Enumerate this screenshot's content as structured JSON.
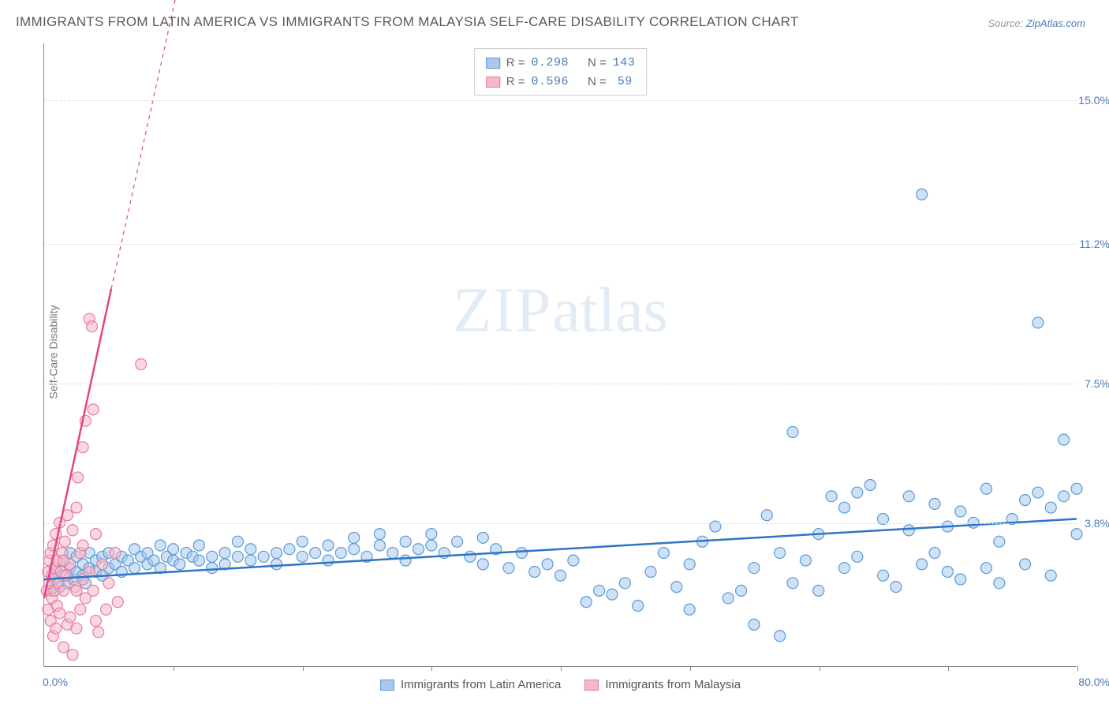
{
  "title": "IMMIGRANTS FROM LATIN AMERICA VS IMMIGRANTS FROM MALAYSIA SELF-CARE DISABILITY CORRELATION CHART",
  "source_prefix": "Source: ",
  "source_link": "ZipAtlas.com",
  "ylabel": "Self-Care Disability",
  "watermark_a": "ZIP",
  "watermark_b": "atlas",
  "chart": {
    "type": "scatter",
    "xlim": [
      0,
      80
    ],
    "ylim": [
      0,
      16.5
    ],
    "x_origin_label": "0.0%",
    "x_max_label": "80.0%",
    "x_ticks": [
      10,
      20,
      30,
      40,
      50,
      60,
      70,
      80
    ],
    "y_gridlines": [
      {
        "y": 3.8,
        "label": "3.8%"
      },
      {
        "y": 7.5,
        "label": "7.5%"
      },
      {
        "y": 11.2,
        "label": "11.2%"
      },
      {
        "y": 15.0,
        "label": "15.0%"
      }
    ],
    "background_color": "#ffffff",
    "grid_color": "#dddddd",
    "axis_color": "#888888",
    "marker_radius": 7,
    "marker_stroke_width": 1.2,
    "series": [
      {
        "name": "Immigrants from Latin America",
        "fill": "#a8c8ec",
        "stroke": "#5b9bd5",
        "line_color": "#2e75c6",
        "line_width": 2.5,
        "r_label": "R = ",
        "r_value": "0.298",
        "n_label": "N = ",
        "n_value": "143",
        "trend": {
          "x1": 0,
          "y1": 2.3,
          "x2": 80,
          "y2": 3.9,
          "dash_after": 80
        },
        "points": [
          [
            0.5,
            2.0
          ],
          [
            0.8,
            2.3
          ],
          [
            1,
            2.5
          ],
          [
            1.2,
            2.1
          ],
          [
            1.5,
            2.4
          ],
          [
            1.5,
            2.8
          ],
          [
            1.8,
            2.2
          ],
          [
            2,
            2.6
          ],
          [
            2,
            3.0
          ],
          [
            2.3,
            2.3
          ],
          [
            2.5,
            2.5
          ],
          [
            2.5,
            2.9
          ],
          [
            3,
            2.4
          ],
          [
            3,
            2.7
          ],
          [
            3.2,
            2.2
          ],
          [
            3.5,
            2.6
          ],
          [
            3.5,
            3.0
          ],
          [
            4,
            2.5
          ],
          [
            4,
            2.8
          ],
          [
            4.5,
            2.4
          ],
          [
            4.5,
            2.9
          ],
          [
            5,
            2.6
          ],
          [
            5,
            3.0
          ],
          [
            5.5,
            2.7
          ],
          [
            6,
            2.5
          ],
          [
            6,
            2.9
          ],
          [
            6.5,
            2.8
          ],
          [
            7,
            2.6
          ],
          [
            7,
            3.1
          ],
          [
            7.5,
            2.9
          ],
          [
            8,
            2.7
          ],
          [
            8,
            3.0
          ],
          [
            8.5,
            2.8
          ],
          [
            9,
            2.6
          ],
          [
            9,
            3.2
          ],
          [
            9.5,
            2.9
          ],
          [
            10,
            2.8
          ],
          [
            10,
            3.1
          ],
          [
            10.5,
            2.7
          ],
          [
            11,
            3.0
          ],
          [
            11.5,
            2.9
          ],
          [
            12,
            2.8
          ],
          [
            12,
            3.2
          ],
          [
            13,
            2.9
          ],
          [
            13,
            2.6
          ],
          [
            14,
            3.0
          ],
          [
            14,
            2.7
          ],
          [
            15,
            2.9
          ],
          [
            15,
            3.3
          ],
          [
            16,
            2.8
          ],
          [
            16,
            3.1
          ],
          [
            17,
            2.9
          ],
          [
            18,
            3.0
          ],
          [
            18,
            2.7
          ],
          [
            19,
            3.1
          ],
          [
            20,
            2.9
          ],
          [
            20,
            3.3
          ],
          [
            21,
            3.0
          ],
          [
            22,
            2.8
          ],
          [
            22,
            3.2
          ],
          [
            23,
            3.0
          ],
          [
            24,
            3.1
          ],
          [
            24,
            3.4
          ],
          [
            25,
            2.9
          ],
          [
            26,
            3.2
          ],
          [
            26,
            3.5
          ],
          [
            27,
            3.0
          ],
          [
            28,
            3.3
          ],
          [
            28,
            2.8
          ],
          [
            29,
            3.1
          ],
          [
            30,
            3.2
          ],
          [
            30,
            3.5
          ],
          [
            31,
            3.0
          ],
          [
            32,
            3.3
          ],
          [
            33,
            2.9
          ],
          [
            34,
            3.4
          ],
          [
            34,
            2.7
          ],
          [
            35,
            3.1
          ],
          [
            36,
            2.6
          ],
          [
            37,
            3.0
          ],
          [
            38,
            2.5
          ],
          [
            39,
            2.7
          ],
          [
            40,
            2.4
          ],
          [
            41,
            2.8
          ],
          [
            42,
            1.7
          ],
          [
            43,
            2.0
          ],
          [
            44,
            1.9
          ],
          [
            45,
            2.2
          ],
          [
            46,
            1.6
          ],
          [
            47,
            2.5
          ],
          [
            48,
            3.0
          ],
          [
            49,
            2.1
          ],
          [
            50,
            1.5
          ],
          [
            50,
            2.7
          ],
          [
            51,
            3.3
          ],
          [
            52,
            3.7
          ],
          [
            53,
            1.8
          ],
          [
            54,
            2.0
          ],
          [
            55,
            1.1
          ],
          [
            55,
            2.6
          ],
          [
            56,
            4.0
          ],
          [
            57,
            3.0
          ],
          [
            57,
            0.8
          ],
          [
            58,
            2.2
          ],
          [
            58,
            6.2
          ],
          [
            59,
            2.8
          ],
          [
            60,
            3.5
          ],
          [
            60,
            2.0
          ],
          [
            61,
            4.5
          ],
          [
            62,
            2.6
          ],
          [
            62,
            4.2
          ],
          [
            63,
            2.9
          ],
          [
            63,
            4.6
          ],
          [
            64,
            4.8
          ],
          [
            65,
            2.4
          ],
          [
            65,
            3.9
          ],
          [
            66,
            2.1
          ],
          [
            67,
            3.6
          ],
          [
            67,
            4.5
          ],
          [
            68,
            2.7
          ],
          [
            68,
            12.5
          ],
          [
            69,
            3.0
          ],
          [
            69,
            4.3
          ],
          [
            70,
            2.5
          ],
          [
            70,
            3.7
          ],
          [
            71,
            4.1
          ],
          [
            71,
            2.3
          ],
          [
            72,
            3.8
          ],
          [
            73,
            4.7
          ],
          [
            73,
            2.6
          ],
          [
            74,
            3.3
          ],
          [
            74,
            2.2
          ],
          [
            75,
            3.9
          ],
          [
            76,
            4.4
          ],
          [
            76,
            2.7
          ],
          [
            77,
            4.6
          ],
          [
            77,
            9.1
          ],
          [
            78,
            4.2
          ],
          [
            78,
            2.4
          ],
          [
            79,
            6.0
          ],
          [
            79,
            4.5
          ],
          [
            80,
            3.5
          ],
          [
            80,
            4.7
          ]
        ]
      },
      {
        "name": "Immigrants from Malaysia",
        "fill": "#f5b8c8",
        "stroke": "#e87ba0",
        "line_color": "#e24585",
        "line_width": 2.5,
        "r_label": "R = ",
        "r_value": "0.596",
        "n_label": "N = ",
        "n_value": "59",
        "trend": {
          "x1": 0,
          "y1": 1.8,
          "x2": 5.2,
          "y2": 10.0,
          "dash_after": 5.2,
          "dash_x2": 10.7,
          "dash_y2": 18.5
        },
        "points": [
          [
            0.2,
            2.0
          ],
          [
            0.3,
            2.5
          ],
          [
            0.3,
            1.5
          ],
          [
            0.4,
            2.2
          ],
          [
            0.4,
            2.8
          ],
          [
            0.5,
            1.2
          ],
          [
            0.5,
            3.0
          ],
          [
            0.6,
            2.4
          ],
          [
            0.6,
            1.8
          ],
          [
            0.7,
            3.2
          ],
          [
            0.7,
            0.8
          ],
          [
            0.8,
            2.6
          ],
          [
            0.8,
            2.0
          ],
          [
            0.9,
            3.5
          ],
          [
            0.9,
            1.0
          ],
          [
            1.0,
            2.8
          ],
          [
            1.0,
            1.6
          ],
          [
            1.1,
            2.2
          ],
          [
            1.2,
            3.8
          ],
          [
            1.2,
            1.4
          ],
          [
            1.3,
            2.5
          ],
          [
            1.4,
            3.0
          ],
          [
            1.5,
            2.0
          ],
          [
            1.5,
            0.5
          ],
          [
            1.6,
            3.3
          ],
          [
            1.7,
            2.4
          ],
          [
            1.8,
            1.1
          ],
          [
            1.8,
            4.0
          ],
          [
            2.0,
            2.7
          ],
          [
            2.0,
            1.3
          ],
          [
            2.2,
            3.6
          ],
          [
            2.2,
            0.3
          ],
          [
            2.4,
            2.1
          ],
          [
            2.5,
            4.2
          ],
          [
            2.5,
            1.0
          ],
          [
            2.6,
            5.0
          ],
          [
            2.8,
            3.0
          ],
          [
            2.8,
            1.5
          ],
          [
            3.0,
            2.3
          ],
          [
            3.0,
            5.8
          ],
          [
            3.2,
            6.5
          ],
          [
            3.2,
            1.8
          ],
          [
            3.5,
            9.2
          ],
          [
            3.5,
            2.5
          ],
          [
            3.7,
            9.0
          ],
          [
            3.8,
            2.0
          ],
          [
            3.8,
            6.8
          ],
          [
            4.0,
            1.2
          ],
          [
            4.2,
            0.9
          ],
          [
            4.5,
            2.7
          ],
          [
            4.8,
            1.5
          ],
          [
            5.0,
            2.2
          ],
          [
            5.5,
            3.0
          ],
          [
            5.7,
            1.7
          ],
          [
            7.5,
            8.0
          ],
          [
            3.0,
            3.2
          ],
          [
            2.5,
            2.0
          ],
          [
            1.5,
            2.8
          ],
          [
            4.0,
            3.5
          ]
        ]
      }
    ]
  },
  "bottom_legend": [
    {
      "label": "Immigrants from Latin America",
      "fill": "#a8c8ec",
      "stroke": "#5b9bd5"
    },
    {
      "label": "Immigrants from Malaysia",
      "fill": "#f5b8c8",
      "stroke": "#e87ba0"
    }
  ]
}
